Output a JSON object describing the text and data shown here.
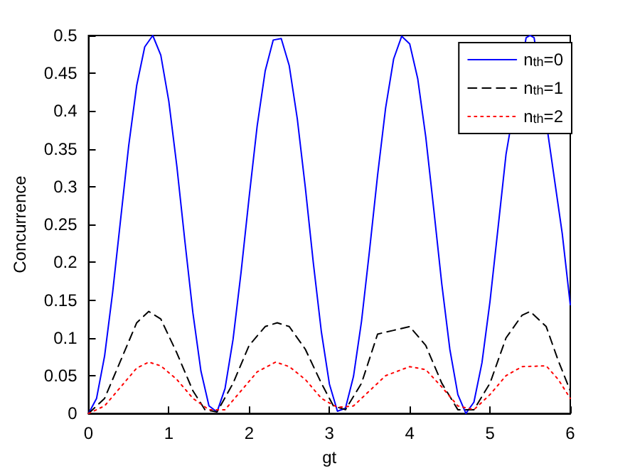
{
  "chart_data": {
    "type": "line",
    "xlabel": "gt",
    "ylabel": "Concurrence",
    "xlim": [
      0,
      6
    ],
    "xticks": [
      0,
      1,
      2,
      3,
      4,
      5,
      6
    ],
    "ylim": [
      0,
      0.5
    ],
    "yticks": [
      0,
      0.05,
      0.1,
      0.15,
      0.2,
      0.25,
      0.3,
      0.35,
      0.4,
      0.45,
      0.5
    ],
    "grid": false,
    "legend": "top right",
    "marker": "none",
    "series": [
      {
        "name": "n$_{th}$=0",
        "color": "#0000ff",
        "line_style": "solid",
        "x": [
          0,
          0.1,
          0.2,
          0.3,
          0.4,
          0.5,
          0.6,
          0.7,
          0.8,
          0.9,
          1.0,
          1.1,
          1.2,
          1.3,
          1.4,
          1.5,
          1.6,
          1.7,
          1.8,
          1.9,
          2.0,
          2.1,
          2.2,
          2.3,
          2.4,
          2.5,
          2.6,
          2.7,
          2.8,
          2.9,
          3.0,
          3.1,
          3.2,
          3.3,
          3.4,
          3.5,
          3.6,
          3.7,
          3.8,
          3.9,
          4.0,
          4.1,
          4.2,
          4.3,
          4.4,
          4.5,
          4.6,
          4.7,
          4.8,
          4.9,
          5.0,
          5.1,
          5.2,
          5.3,
          5.4,
          5.45,
          5.5,
          5.55,
          5.6,
          5.7,
          5.8,
          5.9,
          6.0
        ],
        "values": [
          0,
          0.02,
          0.076,
          0.16,
          0.257,
          0.354,
          0.434,
          0.485,
          0.5,
          0.474,
          0.413,
          0.327,
          0.228,
          0.133,
          0.056,
          0.01,
          0.002,
          0.033,
          0.098,
          0.187,
          0.286,
          0.38,
          0.453,
          0.494,
          0.496,
          0.46,
          0.39,
          0.299,
          0.199,
          0.108,
          0.039,
          0.003,
          0.007,
          0.049,
          0.122,
          0.216,
          0.315,
          0.404,
          0.469,
          0.499,
          0.489,
          0.443,
          0.366,
          0.27,
          0.171,
          0.085,
          0.025,
          0,
          0.015,
          0.067,
          0.148,
          0.245,
          0.343,
          null,
          null,
          0.497,
          0.5,
          0.497,
          null,
          null,
          null,
          0.238,
          0.144
        ]
      },
      {
        "name": "n$_{th}$=1",
        "color": "#000000",
        "line_style": "dashed",
        "x": [
          0,
          0.2,
          0.4,
          0.6,
          0.75,
          0.9,
          1.1,
          1.3,
          1.45,
          1.6,
          1.8,
          2.0,
          2.2,
          2.35,
          2.5,
          2.7,
          2.9,
          3.05,
          3.2,
          3.4,
          3.6,
          3.8,
          4.0,
          4.2,
          4.4,
          4.6,
          4.8,
          5.0,
          5.2,
          5.4,
          5.5,
          5.7,
          5.85,
          6.0
        ],
        "values": [
          0,
          0.02,
          0.07,
          0.12,
          0.135,
          0.125,
          0.08,
          0.03,
          0.005,
          0.002,
          0.04,
          0.09,
          0.115,
          0.12,
          0.115,
          0.085,
          0.04,
          0.01,
          0.005,
          0.04,
          0.105,
          0.11,
          0.115,
          0.09,
          0.04,
          0.005,
          0.005,
          0.04,
          0.1,
          0.13,
          0.135,
          0.115,
          0.07,
          0.03
        ]
      },
      {
        "name": "n$_{th}$=2",
        "color": "#ff0000",
        "line_style": "dotted",
        "x": [
          0,
          0.2,
          0.4,
          0.6,
          0.75,
          0.9,
          1.1,
          1.3,
          1.5,
          1.7,
          1.9,
          2.1,
          2.33,
          2.5,
          2.7,
          2.9,
          3.1,
          3.3,
          3.5,
          3.7,
          4.0,
          4.2,
          4.4,
          4.6,
          4.8,
          5.0,
          5.2,
          5.4,
          5.7,
          5.85,
          6.0
        ],
        "values": [
          0,
          0.01,
          0.035,
          0.06,
          0.068,
          0.063,
          0.045,
          0.02,
          0.005,
          0.005,
          0.03,
          0.055,
          0.068,
          0.062,
          0.045,
          0.02,
          0.008,
          0.01,
          0.03,
          0.05,
          0.062,
          0.058,
          0.035,
          0.01,
          0.005,
          0.025,
          0.05,
          0.062,
          0.063,
          0.045,
          0.02
        ]
      }
    ]
  }
}
